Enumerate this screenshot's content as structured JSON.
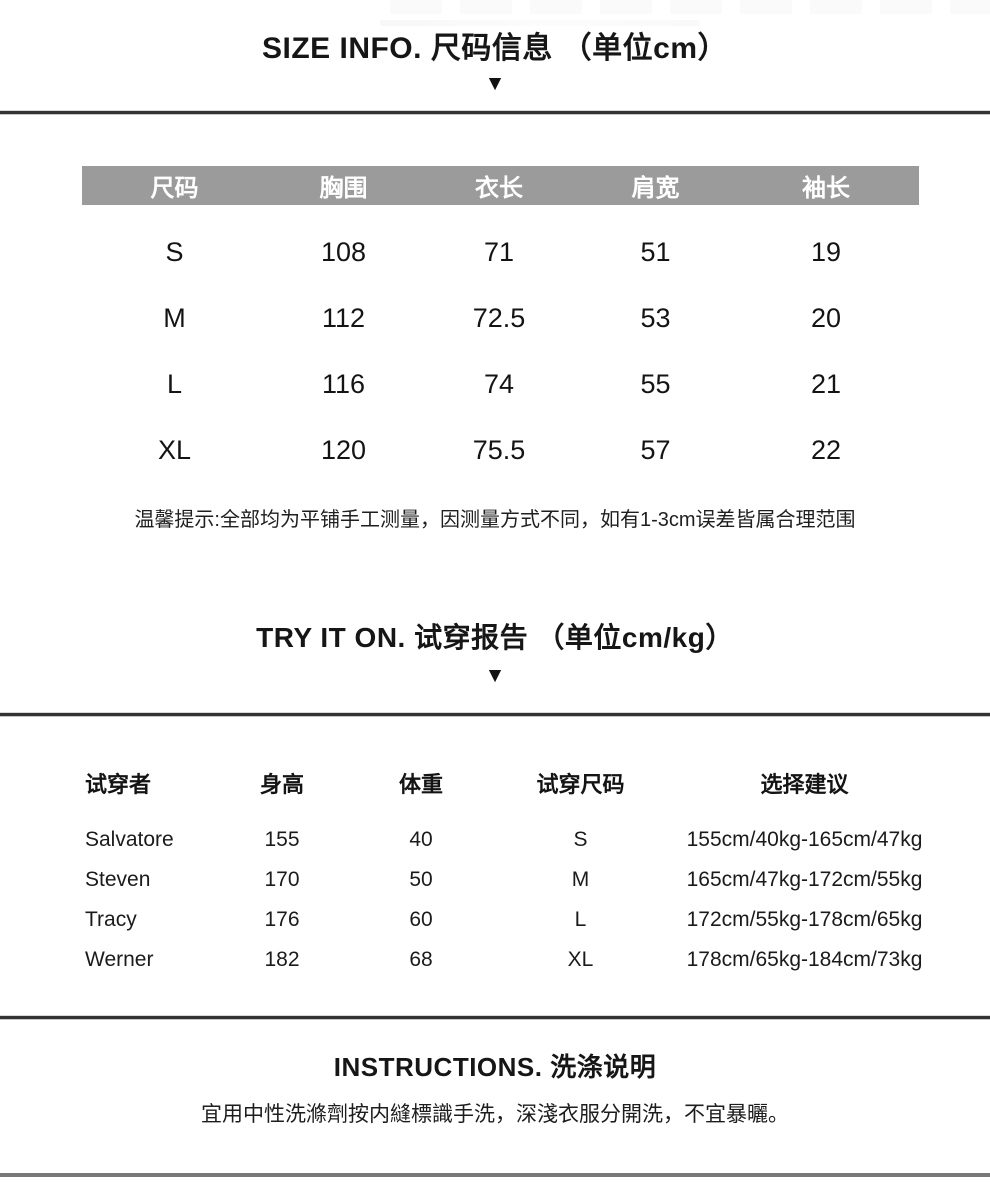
{
  "colors": {
    "table_header_bar": "#9b9b9b",
    "table_header_text": "#ffffff",
    "body_text": "#1a1a1a",
    "divider_dark": "#333333",
    "divider_bottom": "#787878"
  },
  "size_section": {
    "title": "SIZE INFO. 尺码信息 （单位cm）",
    "arrow": "▼",
    "table": {
      "headers": [
        "尺码",
        "胸围",
        "衣长",
        "肩宽",
        "袖长"
      ],
      "rows": [
        [
          "S",
          "108",
          "71",
          "51",
          "19"
        ],
        [
          "M",
          "112",
          "72.5",
          "53",
          "20"
        ],
        [
          "L",
          "116",
          "74",
          "55",
          "21"
        ],
        [
          "XL",
          "120",
          "75.5",
          "57",
          "22"
        ]
      ]
    },
    "note": "温馨提示:全部均为平铺手工测量，因测量方式不同，如有1-3cm误差皆属合理范围"
  },
  "tryon_section": {
    "title": "TRY IT ON. 试穿报告 （单位cm/kg）",
    "arrow": "▼",
    "table": {
      "headers": [
        "试穿者",
        "身高",
        "体重",
        "试穿尺码",
        "选择建议"
      ],
      "rows": [
        [
          "Salvatore",
          "155",
          "40",
          "S",
          "155cm/40kg-165cm/47kg"
        ],
        [
          "Steven",
          "170",
          "50",
          "M",
          "165cm/47kg-172cm/55kg"
        ],
        [
          "Tracy",
          "176",
          "60",
          "L",
          "172cm/55kg-178cm/65kg"
        ],
        [
          "Werner",
          "182",
          "68",
          "XL",
          "178cm/65kg-184cm/73kg"
        ]
      ]
    }
  },
  "instructions_section": {
    "title": "INSTRUCTIONS. 洗涤说明",
    "body": "宜用中性洗滌劑按内縫標識手洗，深淺衣服分開洗，不宜暴曬。"
  }
}
